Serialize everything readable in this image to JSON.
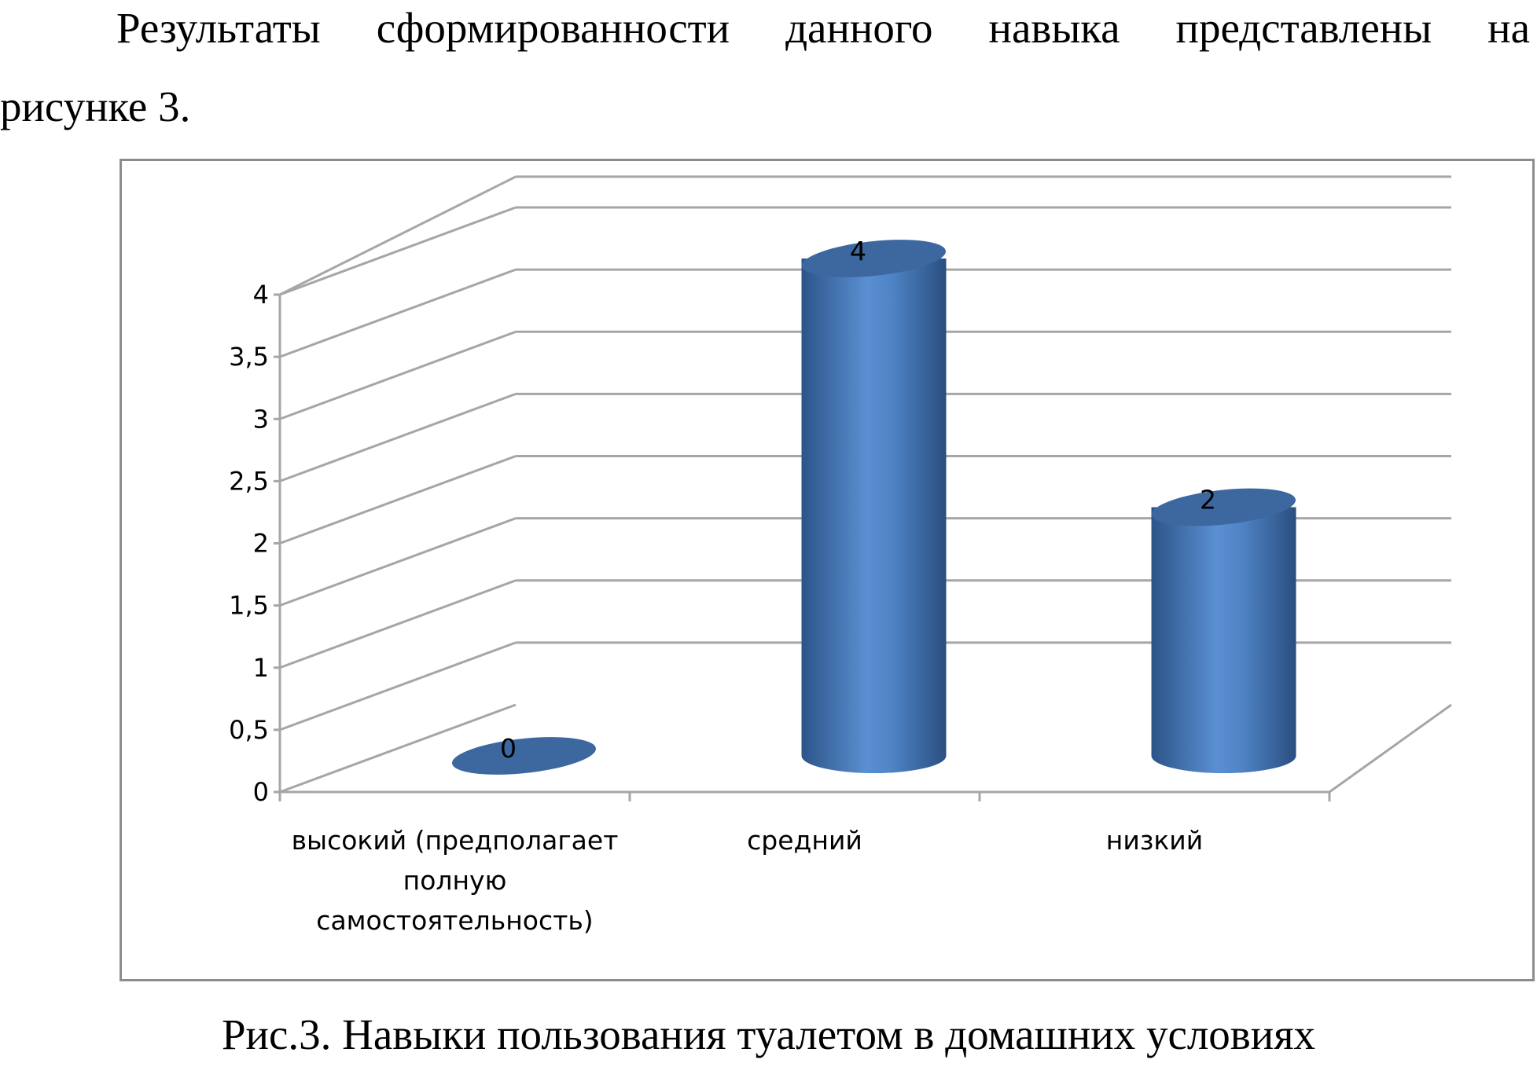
{
  "text": {
    "line1_words": [
      "Результаты",
      "сформированности",
      "данного",
      "навыка",
      "представлены",
      "на"
    ],
    "line2": "рисунке 3.",
    "caption": "Рис.3. Навыки пользования туалетом в домашних условиях"
  },
  "chart_data": {
    "type": "bar",
    "style": "3d-cylinder",
    "categories": [
      [
        "высокий (предполагает",
        "полную",
        "самостоятельность)"
      ],
      [
        "средний"
      ],
      [
        "низкий"
      ]
    ],
    "values": [
      0,
      4,
      2
    ],
    "data_labels": [
      "0",
      "4",
      "2"
    ],
    "ylim": [
      0,
      4
    ],
    "yticks": [
      "0",
      "0,5",
      "1",
      "1,5",
      "2",
      "2,5",
      "3",
      "3,5",
      "4"
    ],
    "grid": true,
    "legend": "none",
    "title": "",
    "xlabel": "",
    "ylabel": "",
    "colors": {
      "bar": "#4a7ebb",
      "grid": "#a6a6a6"
    }
  }
}
